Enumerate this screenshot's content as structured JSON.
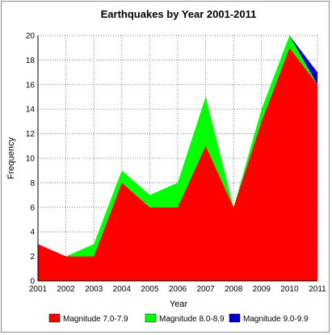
{
  "chart_data": {
    "type": "area",
    "stacked": true,
    "title": "Earthquakes by Year 2001-2011",
    "xlabel": "Year",
    "ylabel": "Frequency",
    "x": [
      2001,
      2002,
      2003,
      2004,
      2005,
      2006,
      2007,
      2008,
      2009,
      2010,
      2011
    ],
    "ylim": [
      0,
      20
    ],
    "yticks": [
      0,
      2,
      4,
      6,
      8,
      10,
      12,
      14,
      16,
      18,
      20
    ],
    "grid": true,
    "legend_position": "bottom",
    "series": [
      {
        "name": "Magnitude 7.0-7.9",
        "color": "#ff0000",
        "values": [
          3,
          2,
          2,
          8,
          6,
          6,
          11,
          6,
          13,
          19,
          16
        ]
      },
      {
        "name": "Magnitude 8.0-8.9",
        "color": "#00ff00",
        "values": [
          0,
          0,
          1,
          1,
          1,
          2,
          4,
          0,
          1,
          1,
          0
        ]
      },
      {
        "name": "Magnitude 9.0-9.9",
        "color": "#0000cc",
        "values": [
          0,
          0,
          0,
          0,
          0,
          0,
          0,
          0,
          0,
          0,
          1
        ]
      }
    ]
  }
}
